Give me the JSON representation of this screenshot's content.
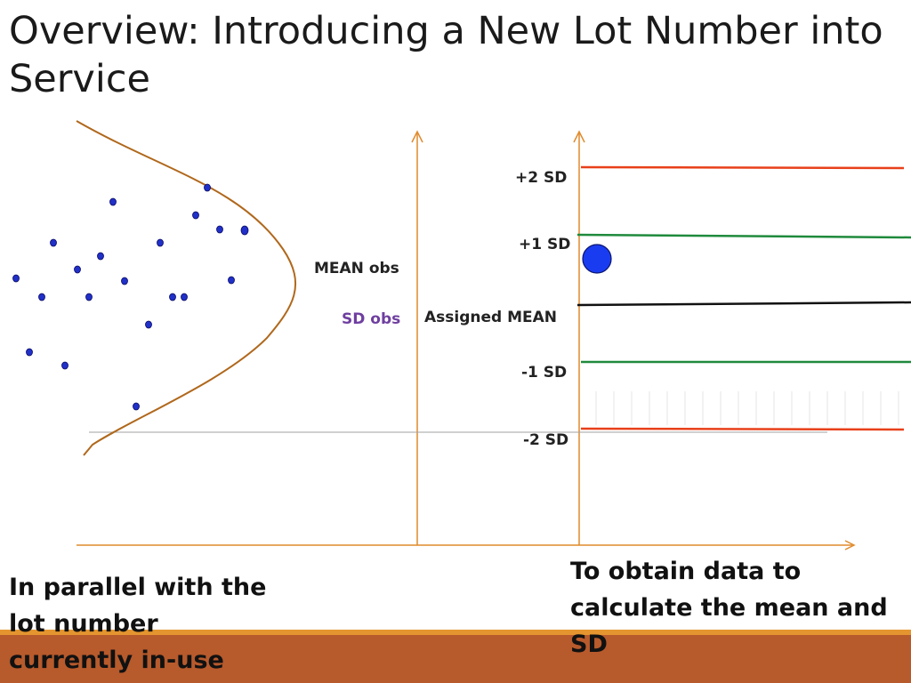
{
  "slide": {
    "title": "Overview: Introducing a New Lot Number into Service"
  },
  "labels": {
    "mean_obs": "MEAN obs",
    "sd_obs": "SD obs",
    "assigned_mean": "Assigned MEAN",
    "plus2sd": "+2 SD",
    "plus1sd": "+1 SD",
    "minus1sd": "-1 SD",
    "minus2sd": "-2 SD"
  },
  "captions": {
    "left": "In parallel with the lot number currently in-use",
    "right": "To obtain data to calculate the mean and SD"
  },
  "colors": {
    "axis": "#e08a2c",
    "curve": "#b0681c",
    "dots": "#2030c8",
    "sd2_line": "#e8401a",
    "sd1_line": "#1f8a3c",
    "mean_line": "#111111",
    "footer": "#b75a2c",
    "footer_stripe": "#e4952f"
  }
}
